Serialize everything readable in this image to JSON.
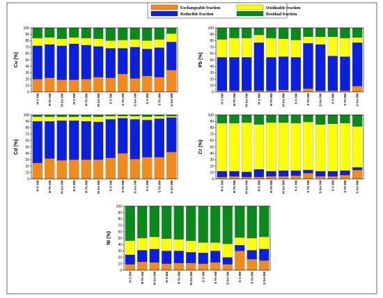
{
  "legend": [
    {
      "name": "Exchangeable fraction",
      "color": "#f28a1e"
    },
    {
      "name": "Oxidizable fraction",
      "color": "#ffff00"
    },
    {
      "name": "Reducible fraction",
      "color": "#0a1fe0"
    },
    {
      "name": "Residual fraction",
      "color": "#0a8a1a"
    }
  ],
  "chart_data": [
    {
      "type": "bar",
      "stacked": true,
      "ylabel": "Cu (%)",
      "ylim": [
        0,
        100
      ],
      "yticks": [
        0,
        10,
        20,
        30,
        40,
        50,
        60,
        70,
        80,
        90,
        100
      ],
      "categories": [
        "H C 6W",
        "H TA 6W",
        "H GA 6W",
        "H C 8W",
        "H TA 8W",
        "H GA 8W",
        "S C 6W",
        "S TA 6W",
        "S GA 6W",
        "S C 8W",
        "S TA 8W",
        "S GA 8W"
      ],
      "series": [
        {
          "name": "Exchangeable fraction",
          "values": [
            20,
            22,
            19,
            19,
            20,
            23,
            22,
            28,
            21,
            25,
            23,
            34
          ]
        },
        {
          "name": "Reducible fraction",
          "values": [
            52,
            52,
            53,
            56,
            53,
            48,
            46,
            40,
            49,
            42,
            46,
            44
          ]
        },
        {
          "name": "Oxidizable fraction",
          "values": [
            12,
            11,
            11,
            10,
            11,
            12,
            12,
            13,
            12,
            13,
            13,
            13
          ]
        },
        {
          "name": "Residual fraction",
          "values": [
            16,
            15,
            17,
            15,
            16,
            17,
            20,
            19,
            18,
            20,
            18,
            9
          ]
        }
      ]
    },
    {
      "type": "bar",
      "stacked": true,
      "ylabel": "Pb (%)",
      "ylim": [
        0,
        100
      ],
      "yticks": [
        0,
        10,
        20,
        30,
        40,
        50,
        60,
        70,
        80,
        90,
        100
      ],
      "categories": [
        "H C 6W",
        "H TA 6W",
        "H GA 6W",
        "H C 8W",
        "H TA 8W",
        "H GA 8W",
        "S C 6W",
        "S TA 6W",
        "S GA 6W",
        "S C 8W",
        "S TA 8W",
        "S GA 8W"
      ],
      "series": [
        {
          "name": "Exchangeable fraction",
          "values": [
            2,
            2,
            2,
            2,
            2,
            3,
            2,
            5,
            2,
            2,
            2,
            9
          ]
        },
        {
          "name": "Reducible fraction",
          "values": [
            52,
            52,
            52,
            75,
            52,
            52,
            52,
            71,
            72,
            54,
            53,
            68
          ]
        },
        {
          "name": "Oxidizable fraction",
          "values": [
            28,
            30,
            30,
            12,
            30,
            28,
            27,
            10,
            12,
            30,
            29,
            8
          ]
        },
        {
          "name": "Residual fraction",
          "values": [
            18,
            16,
            16,
            11,
            16,
            17,
            19,
            14,
            14,
            14,
            16,
            15
          ]
        }
      ]
    },
    {
      "type": "bar",
      "stacked": true,
      "ylabel": "Cd (%)",
      "ylim": [
        0,
        100
      ],
      "yticks": [
        0,
        10,
        20,
        30,
        40,
        50,
        60,
        70,
        80,
        90,
        100
      ],
      "categories": [
        "H C 6W",
        "H TA 6W",
        "H GA 6W",
        "H C 8W",
        "H TA 8W",
        "H GA 8W",
        "S C 6W",
        "S TA 6W",
        "S GA 6W",
        "S C 8W",
        "S TA 8W",
        "S GA 8W"
      ],
      "series": [
        {
          "name": "Exchangeable fraction",
          "values": [
            25,
            32,
            29,
            30,
            30,
            30,
            33,
            40,
            31,
            34,
            34,
            42
          ]
        },
        {
          "name": "Reducible fraction",
          "values": [
            65,
            58,
            62,
            61,
            60,
            59,
            60,
            55,
            62,
            58,
            60,
            54
          ]
        },
        {
          "name": "Oxidizable fraction",
          "values": [
            7,
            7,
            6,
            6,
            7,
            8,
            5,
            3,
            5,
            5,
            4,
            2
          ]
        },
        {
          "name": "Residual fraction",
          "values": [
            3,
            3,
            3,
            3,
            3,
            3,
            2,
            2,
            2,
            3,
            2,
            2
          ]
        }
      ]
    },
    {
      "type": "bar",
      "stacked": true,
      "ylabel": "Cr (%)",
      "ylim": [
        0,
        100
      ],
      "yticks": [
        0,
        10,
        20,
        30,
        40,
        50,
        60,
        70,
        80,
        90,
        100
      ],
      "categories": [
        "H C 6W",
        "H TA 6W",
        "H GA 6W",
        "H C 8W",
        "H TA 8W",
        "H GA 8W",
        "S C 6W",
        "S TA 6W",
        "S GA 6W",
        "S C 8W",
        "S TA 8W",
        "S GA 8W"
      ],
      "series": [
        {
          "name": "Exchangeable fraction",
          "values": [
            3,
            4,
            3,
            3,
            4,
            4,
            5,
            9,
            4,
            4,
            6,
            14
          ]
        },
        {
          "name": "Reducible fraction",
          "values": [
            9,
            8,
            8,
            12,
            8,
            9,
            8,
            5,
            8,
            8,
            7,
            4
          ]
        },
        {
          "name": "Oxidizable fraction",
          "values": [
            75,
            75,
            77,
            70,
            76,
            75,
            74,
            75,
            73,
            74,
            74,
            64
          ]
        },
        {
          "name": "Residual fraction",
          "values": [
            13,
            13,
            12,
            15,
            12,
            12,
            13,
            11,
            15,
            14,
            13,
            18
          ]
        }
      ]
    },
    {
      "type": "bar",
      "stacked": true,
      "ylabel": "Ni (%)",
      "ylim": [
        0,
        100
      ],
      "yticks": [
        0,
        10,
        20,
        30,
        40,
        50,
        60,
        70,
        80,
        90,
        100
      ],
      "categories": [
        "H C 6W",
        "H TA 6W",
        "H GA 6W",
        "H C 8W",
        "H TA 8W",
        "H GA 8W",
        "S C 6W",
        "S TA 6W",
        "S GA 6W",
        "S C 8W",
        "S TA 8W",
        "S GA 8W"
      ],
      "series": [
        {
          "name": "Exchangeable fraction",
          "values": [
            9,
            13,
            12,
            10,
            11,
            11,
            10,
            12,
            9,
            30,
            17,
            15
          ]
        },
        {
          "name": "Reducible fraction",
          "values": [
            15,
            18,
            21,
            20,
            19,
            17,
            17,
            18,
            11,
            9,
            14,
            18
          ]
        },
        {
          "name": "Oxidizable fraction",
          "values": [
            22,
            19,
            19,
            19,
            18,
            18,
            16,
            13,
            21,
            12,
            19,
            19
          ]
        },
        {
          "name": "Residual fraction",
          "values": [
            54,
            50,
            48,
            51,
            52,
            54,
            57,
            57,
            59,
            49,
            50,
            48
          ]
        }
      ]
    }
  ]
}
